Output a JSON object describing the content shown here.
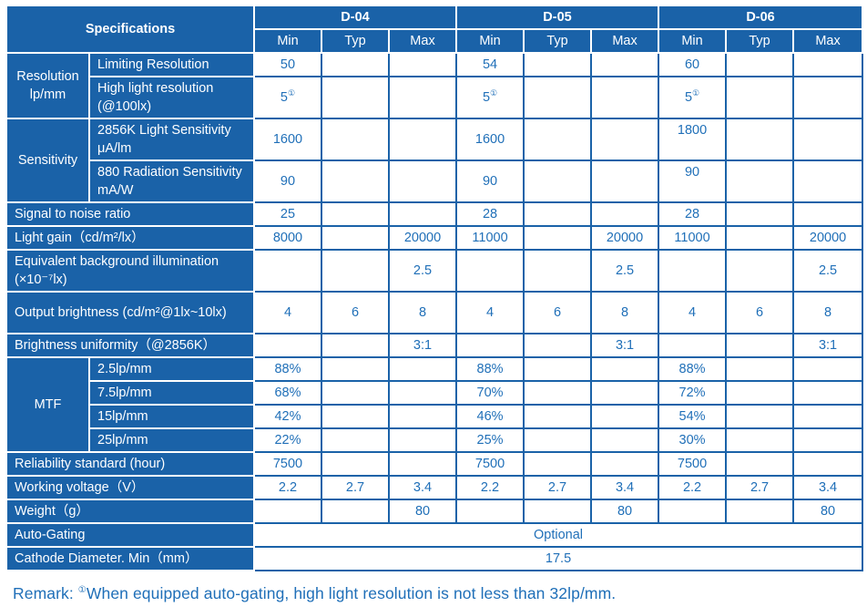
{
  "header": {
    "title": "Specifications",
    "models": [
      "D-04",
      "D-05",
      "D-06"
    ],
    "subcols": [
      "Min",
      "Typ",
      "Max"
    ]
  },
  "groups": {
    "resolution": "Resolution lp/mm",
    "sensitivity": "Sensitivity",
    "mtf": "MTF"
  },
  "rows": {
    "limiting_resolution": {
      "label": "Limiting Resolution",
      "values": [
        "50",
        "",
        "",
        "54",
        "",
        "",
        "60",
        "",
        ""
      ]
    },
    "high_light_resolution": {
      "label": "High light resolution (@100lx)",
      "values": [
        "5",
        "",
        "",
        "5",
        "",
        "",
        "5",
        "",
        ""
      ],
      "footnote_mark": "①"
    },
    "light_sensitivity": {
      "label": "2856K Light Sensitivity μA/lm",
      "values": [
        "1600",
        "",
        "",
        "1600",
        "",
        "",
        "1800",
        "",
        ""
      ]
    },
    "radiation_sensitivity": {
      "label": "880 Radiation Sensitivity mA/W",
      "values": [
        "90",
        "",
        "",
        "90",
        "",
        "",
        "90",
        "",
        ""
      ]
    },
    "snr": {
      "label": "Signal to noise ratio",
      "values": [
        "25",
        "",
        "",
        "28",
        "",
        "",
        "28",
        "",
        ""
      ]
    },
    "light_gain": {
      "label": "Light gain（cd/m²/lx）",
      "values": [
        "8000",
        "",
        "20000",
        "11000",
        "",
        "20000",
        "11000",
        "",
        "20000"
      ]
    },
    "ebi": {
      "label": "Equivalent background illumination (×10⁻⁷lx)",
      "values": [
        "",
        "",
        "2.5",
        "",
        "",
        "2.5",
        "",
        "",
        "2.5"
      ]
    },
    "output_brightness": {
      "label": "Output brightness (cd/m²@1lx~10lx)",
      "values": [
        "4",
        "6",
        "8",
        "4",
        "6",
        "8",
        "4",
        "6",
        "8"
      ]
    },
    "brightness_uniformity": {
      "label": "Brightness uniformity（@2856K）",
      "values": [
        "",
        "",
        "3:1",
        "",
        "",
        "3:1",
        "",
        "",
        "3:1"
      ]
    },
    "mtf_2_5": {
      "label": "2.5lp/mm",
      "values": [
        "88%",
        "",
        "",
        "88%",
        "",
        "",
        "88%",
        "",
        ""
      ]
    },
    "mtf_7_5": {
      "label": "7.5lp/mm",
      "values": [
        "68%",
        "",
        "",
        "70%",
        "",
        "",
        "72%",
        "",
        ""
      ]
    },
    "mtf_15": {
      "label": "15lp/mm",
      "values": [
        "42%",
        "",
        "",
        "46%",
        "",
        "",
        "54%",
        "",
        ""
      ]
    },
    "mtf_25": {
      "label": "25lp/mm",
      "values": [
        "22%",
        "",
        "",
        "25%",
        "",
        "",
        "30%",
        "",
        ""
      ]
    },
    "reliability": {
      "label": "Reliability standard (hour)",
      "values": [
        "7500",
        "",
        "",
        "7500",
        "",
        "",
        "7500",
        "",
        ""
      ]
    },
    "working_voltage": {
      "label": "Working voltage（V）",
      "values": [
        "2.2",
        "2.7",
        "3.4",
        "2.2",
        "2.7",
        "3.4",
        "2.2",
        "2.7",
        "3.4"
      ]
    },
    "weight": {
      "label": "Weight（g）",
      "values": [
        "",
        "",
        "80",
        "",
        "",
        "80",
        "",
        "",
        "80"
      ]
    },
    "auto_gating": {
      "label": "Auto-Gating",
      "value": "Optional"
    },
    "cathode_diameter": {
      "label": "Cathode Diameter. Min（mm）",
      "value": "17.5"
    }
  },
  "remark": {
    "prefix": "Remark:",
    "mark": "①",
    "text": "When equipped auto-gating, high light resolution is not less than 32lp/mm."
  },
  "colors": {
    "header_blue": "#1a62a8",
    "value_text_blue": "#1f6fb8",
    "background": "#ffffff"
  }
}
